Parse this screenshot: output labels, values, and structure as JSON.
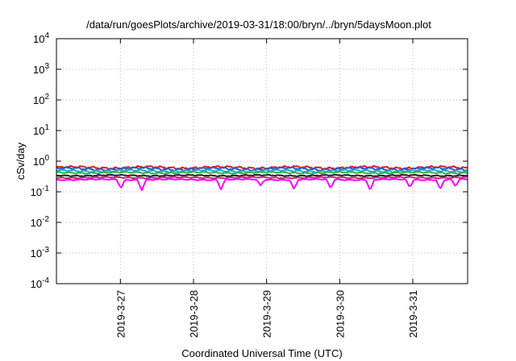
{
  "chart_data": {
    "type": "line",
    "title": "/data/run/goesPlots/archive/2019-03-31/18:00/bryn/../bryn/5daysMoon.plot",
    "xlabel": "Coordinated Universal Time (UTC)",
    "ylabel": "cSv/day",
    "y_scale": "log",
    "ylim": [
      0.0001,
      10000
    ],
    "y_ticks": [
      {
        "value": 10000,
        "base": "10",
        "exp": "4"
      },
      {
        "value": 1000,
        "base": "10",
        "exp": "3"
      },
      {
        "value": 100,
        "base": "10",
        "exp": "2"
      },
      {
        "value": 10,
        "base": "10",
        "exp": "1"
      },
      {
        "value": 1,
        "base": "10",
        "exp": "0"
      },
      {
        "value": 0.1,
        "base": "10",
        "exp": "-1"
      },
      {
        "value": 0.01,
        "base": "10",
        "exp": "-2"
      },
      {
        "value": 0.001,
        "base": "10",
        "exp": "-3"
      },
      {
        "value": 0.0001,
        "base": "10",
        "exp": "-4"
      }
    ],
    "xlim": [
      "2019-03-26 03:00",
      "2019-03-31 18:00"
    ],
    "x_ticks": [
      {
        "value": "2019-03-27 00:00",
        "label": "2019-3-27"
      },
      {
        "value": "2019-03-28 00:00",
        "label": "2019-3-28"
      },
      {
        "value": "2019-03-29 00:00",
        "label": "2019-3-29"
      },
      {
        "value": "2019-03-30 00:00",
        "label": "2019-3-30"
      },
      {
        "value": "2019-03-31 00:00",
        "label": "2019-3-31"
      }
    ],
    "grid": true,
    "series_note_values": "approximate daily-cycle levels read from the plot",
    "series": [
      {
        "color": "#e41a1c",
        "level": 0.62,
        "amplitude": 0.06,
        "dips": []
      },
      {
        "color": "#1f5fd6",
        "level": 0.56,
        "amplitude": 0.07,
        "dips": []
      },
      {
        "color": "#2aa8c8",
        "level": 0.48,
        "amplitude": 0.05,
        "dips": []
      },
      {
        "color": "#2db34a",
        "level": 0.42,
        "amplitude": 0.04,
        "dips": []
      },
      {
        "color": "#222222",
        "level": 0.34,
        "amplitude": 0.03,
        "dips": []
      },
      {
        "color": "#c8287a",
        "level": 0.29,
        "amplitude": 0.03,
        "dips": []
      },
      {
        "color": "#ff00ff",
        "level": 0.25,
        "amplitude": 0.03,
        "dips": [
          {
            "time": "2019-03-27 00:10",
            "value": 0.13
          },
          {
            "time": "2019-03-27 07:00",
            "value": 0.11
          },
          {
            "time": "2019-03-28 09:00",
            "value": 0.12
          },
          {
            "time": "2019-03-28 22:00",
            "value": 0.16
          },
          {
            "time": "2019-03-29 09:00",
            "value": 0.12
          },
          {
            "time": "2019-03-29 21:00",
            "value": 0.13
          },
          {
            "time": "2019-03-30 10:00",
            "value": 0.11
          },
          {
            "time": "2019-03-30 23:00",
            "value": 0.14
          },
          {
            "time": "2019-03-31 09:00",
            "value": 0.12
          },
          {
            "time": "2019-03-31 14:00",
            "value": 0.15
          }
        ]
      }
    ]
  }
}
